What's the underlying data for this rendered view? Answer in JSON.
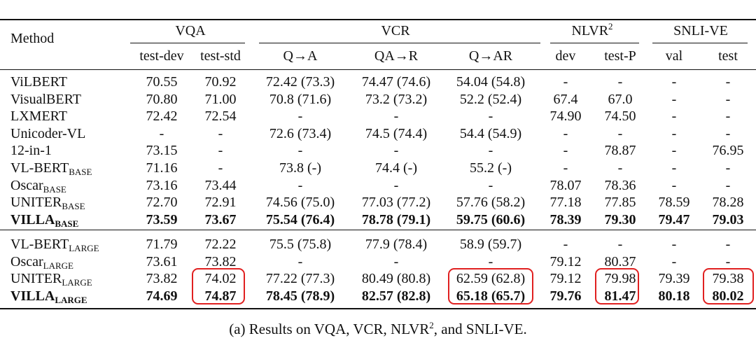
{
  "table": {
    "method_header": "Method",
    "groups": [
      {
        "label": "VQA",
        "sup": ""
      },
      {
        "label": "VCR",
        "sup": ""
      },
      {
        "label": "NLVR",
        "sup": "2"
      },
      {
        "label": "SNLI-VE",
        "sup": ""
      }
    ],
    "subheaders": [
      "test-dev",
      "test-std",
      "Q→A",
      "QA→R",
      "Q→AR",
      "dev",
      "test-P",
      "val",
      "test"
    ],
    "section1": [
      {
        "name": "ViLBERT",
        "sub": "",
        "bold": false,
        "values": [
          "70.55",
          "70.92",
          "72.42 (73.3)",
          "74.47 (74.6)",
          "54.04 (54.8)",
          "-",
          "-",
          "-",
          "-"
        ]
      },
      {
        "name": "VisualBERT",
        "sub": "",
        "bold": false,
        "values": [
          "70.80",
          "71.00",
          "70.8 (71.6)",
          "73.2 (73.2)",
          "52.2 (52.4)",
          "67.4",
          "67.0",
          "-",
          "-"
        ]
      },
      {
        "name": "LXMERT",
        "sub": "",
        "bold": false,
        "values": [
          "72.42",
          "72.54",
          "-",
          "-",
          "-",
          "74.90",
          "74.50",
          "-",
          "-"
        ]
      },
      {
        "name": "Unicoder-VL",
        "sub": "",
        "bold": false,
        "values": [
          "-",
          "-",
          "72.6 (73.4)",
          "74.5 (74.4)",
          "54.4 (54.9)",
          "-",
          "-",
          "-",
          "-"
        ]
      },
      {
        "name": "12-in-1",
        "sub": "",
        "bold": false,
        "values": [
          "73.15",
          "-",
          "-",
          "-",
          "-",
          "-",
          "78.87",
          "-",
          "76.95"
        ]
      },
      {
        "name": "VL-BERT",
        "sub": "BASE",
        "bold": false,
        "values": [
          "71.16",
          "-",
          "73.8 (-)",
          "74.4 (-)",
          "55.2 (-)",
          "-",
          "-",
          "-",
          "-"
        ]
      },
      {
        "name": "Oscar",
        "sub": "BASE",
        "bold": false,
        "values": [
          "73.16",
          "73.44",
          "-",
          "-",
          "-",
          "78.07",
          "78.36",
          "-",
          "-"
        ]
      },
      {
        "name": "UNITER",
        "sub": "BASE",
        "bold": false,
        "values": [
          "72.70",
          "72.91",
          "74.56 (75.0)",
          "77.03 (77.2)",
          "57.76 (58.2)",
          "77.18",
          "77.85",
          "78.59",
          "78.28"
        ]
      },
      {
        "name": "VILLA",
        "sub": "BASE",
        "bold": true,
        "values": [
          "73.59",
          "73.67",
          "75.54 (76.4)",
          "78.78 (79.1)",
          "59.75 (60.6)",
          "78.39",
          "79.30",
          "79.47",
          "79.03"
        ]
      }
    ],
    "section2": [
      {
        "name": "VL-BERT",
        "sub": "LARGE",
        "bold": false,
        "values": [
          "71.79",
          "72.22",
          "75.5 (75.8)",
          "77.9 (78.4)",
          "58.9 (59.7)",
          "-",
          "-",
          "-",
          "-"
        ]
      },
      {
        "name": "Oscar",
        "sub": "LARGE",
        "bold": false,
        "values": [
          "73.61",
          "73.82",
          "-",
          "-",
          "-",
          "79.12",
          "80.37",
          "-",
          "-"
        ]
      },
      {
        "name": "UNITER",
        "sub": "LARGE",
        "bold": false,
        "values": [
          "73.82",
          "74.02",
          "77.22 (77.3)",
          "80.49 (80.8)",
          "62.59 (62.8)",
          "79.12",
          "79.98",
          "79.39",
          "79.38"
        ]
      },
      {
        "name": "VILLA",
        "sub": "LARGE",
        "bold": true,
        "values": [
          "74.69",
          "74.87",
          "78.45 (78.9)",
          "82.57 (82.8)",
          "65.18 (65.7)",
          "79.76",
          "81.47",
          "80.18",
          "80.02"
        ]
      }
    ],
    "highlight_color": "#e02020"
  },
  "caption": {
    "prefix": "(a) Results on VQA, VCR, NLVR",
    "sup": "2",
    "suffix": ", and SNLI-VE."
  }
}
